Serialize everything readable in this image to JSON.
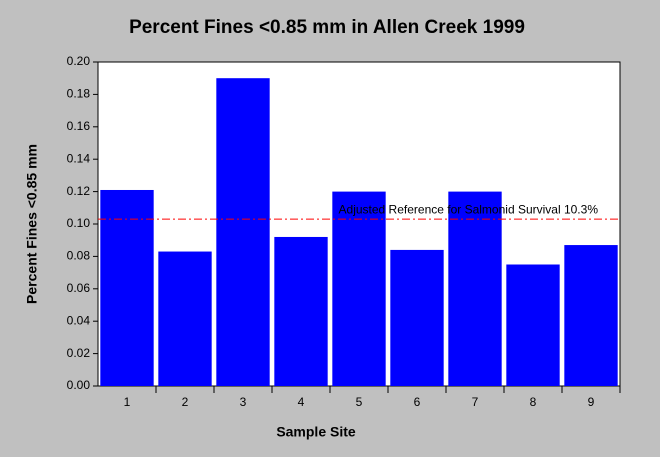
{
  "chart_data": {
    "type": "bar",
    "title": "Percent Fines <0.85 mm in Allen Creek 1999",
    "x_label": "Sample Site",
    "y_label": "Percent Fines <0.85 mm",
    "categories": [
      "1",
      "2",
      "3",
      "4",
      "5",
      "6",
      "7",
      "8",
      "9"
    ],
    "values": [
      0.121,
      0.083,
      0.19,
      0.092,
      0.12,
      0.084,
      0.12,
      0.075,
      0.087
    ],
    "color": "#0000ff",
    "ylim": [
      0,
      0.2
    ],
    "yticks": [
      {
        "value": 0,
        "label": "0.00"
      },
      {
        "value": 0.02,
        "label": "0.02"
      },
      {
        "value": 0.04,
        "label": "0.04"
      },
      {
        "value": 0.06,
        "label": "0.06"
      },
      {
        "value": 0.08,
        "label": "0.08"
      },
      {
        "value": 0.1,
        "label": "0.10"
      },
      {
        "value": 0.12,
        "label": "0.12"
      },
      {
        "value": 0.14,
        "label": "0.14"
      },
      {
        "value": 0.16,
        "label": "0.16"
      },
      {
        "value": 0.18,
        "label": "0.18"
      },
      {
        "value": 0.2,
        "label": "0.20"
      }
    ],
    "reference": {
      "value": 0.103,
      "label": "Adjusted Reference for Salmonid Survival 10.3%",
      "color": "#ff0000"
    }
  }
}
